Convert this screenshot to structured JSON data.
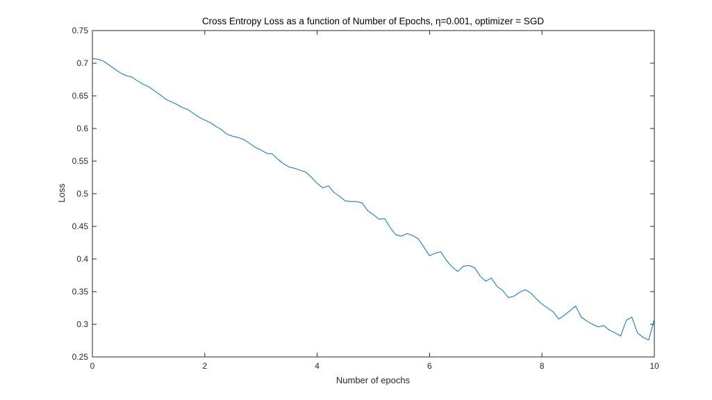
{
  "chart_data": {
    "type": "line",
    "title": "Cross Entropy Loss as a function of Number of Epochs, η=0.001, optimizer = SGD",
    "xlabel": "Number of epochs",
    "ylabel": "Loss",
    "xlim": [
      0,
      10
    ],
    "ylim": [
      0.25,
      0.75
    ],
    "xticks": [
      "0",
      "2",
      "4",
      "6",
      "8",
      "10"
    ],
    "yticks": [
      "0.25",
      "0.3",
      "0.35",
      "0.4",
      "0.45",
      "0.5",
      "0.55",
      "0.6",
      "0.65",
      "0.7",
      "0.75"
    ],
    "grid": false,
    "box": true,
    "series": [
      {
        "color": "#0072BD",
        "x": [
          0.0,
          0.1,
          0.2,
          0.3,
          0.4,
          0.5,
          0.6,
          0.7,
          0.8,
          0.9,
          1.0,
          1.1,
          1.2,
          1.3,
          1.4,
          1.5,
          1.6,
          1.7,
          1.8,
          1.9,
          2.0,
          2.1,
          2.2,
          2.3,
          2.4,
          2.5,
          2.6,
          2.7,
          2.8,
          2.9,
          3.0,
          3.1,
          3.2,
          3.3,
          3.4,
          3.5,
          3.6,
          3.7,
          3.8,
          3.9,
          4.0,
          4.1,
          4.2,
          4.3,
          4.4,
          4.5,
          4.6,
          4.7,
          4.8,
          4.9,
          5.0,
          5.1,
          5.2,
          5.3,
          5.4,
          5.5,
          5.6,
          5.7,
          5.8,
          5.9,
          6.0,
          6.1,
          6.2,
          6.3,
          6.4,
          6.5,
          6.6,
          6.7,
          6.8,
          6.9,
          7.0,
          7.1,
          7.2,
          7.3,
          7.4,
          7.5,
          7.6,
          7.7,
          7.8,
          7.9,
          8.0,
          8.1,
          8.2,
          8.3,
          8.4,
          8.5,
          8.6,
          8.7,
          8.8,
          8.9,
          9.0,
          9.1,
          9.2,
          9.3,
          9.4,
          9.5,
          9.6,
          9.7,
          9.8,
          9.9,
          10.0
        ],
        "y": [
          0.707,
          0.706,
          0.703,
          0.697,
          0.691,
          0.685,
          0.681,
          0.679,
          0.673,
          0.668,
          0.664,
          0.658,
          0.652,
          0.645,
          0.641,
          0.637,
          0.632,
          0.629,
          0.623,
          0.617,
          0.613,
          0.609,
          0.603,
          0.598,
          0.591,
          0.588,
          0.586,
          0.583,
          0.577,
          0.571,
          0.567,
          0.562,
          0.561,
          0.553,
          0.546,
          0.541,
          0.539,
          0.536,
          0.533,
          0.525,
          0.516,
          0.509,
          0.512,
          0.502,
          0.496,
          0.489,
          0.488,
          0.488,
          0.486,
          0.474,
          0.468,
          0.461,
          0.462,
          0.448,
          0.437,
          0.435,
          0.439,
          0.436,
          0.431,
          0.418,
          0.405,
          0.409,
          0.411,
          0.398,
          0.388,
          0.381,
          0.389,
          0.39,
          0.387,
          0.374,
          0.366,
          0.371,
          0.358,
          0.352,
          0.341,
          0.343,
          0.349,
          0.353,
          0.348,
          0.339,
          0.331,
          0.325,
          0.319,
          0.308,
          0.314,
          0.321,
          0.328,
          0.311,
          0.305,
          0.3,
          0.296,
          0.298,
          0.291,
          0.287,
          0.282,
          0.306,
          0.311,
          0.287,
          0.28,
          0.276,
          0.308
        ]
      }
    ]
  }
}
